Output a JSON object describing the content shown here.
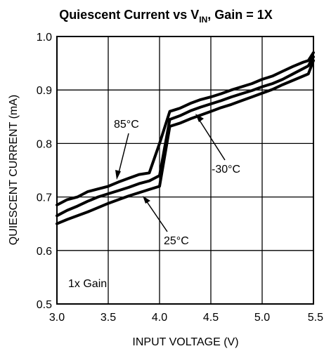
{
  "chart_data": {
    "type": "line",
    "title": {
      "prefix": "Quiescent Current vs V",
      "subscript": "IN",
      "suffix": ", Gain = 1X"
    },
    "xlabel": "INPUT VOLTAGE (V)",
    "ylabel": "QUIESCENT CURRENT (mA)",
    "xlim": [
      3.0,
      5.5
    ],
    "ylim": [
      0.5,
      1.0
    ],
    "xticks": [
      "3.0",
      "3.5",
      "4.0",
      "4.5",
      "5.0",
      "5.5"
    ],
    "yticks": [
      "0.5",
      "0.6",
      "0.7",
      "0.8",
      "0.9",
      "1.0"
    ],
    "grid": true,
    "series": [
      {
        "name": "85°C",
        "x": [
          3.0,
          3.1,
          3.2,
          3.3,
          3.4,
          3.5,
          3.6,
          3.7,
          3.8,
          3.9,
          4.0,
          4.1,
          4.2,
          4.3,
          4.4,
          4.5,
          4.6,
          4.7,
          4.8,
          4.9,
          5.0,
          5.1,
          5.2,
          5.3,
          5.4,
          5.45,
          5.5
        ],
        "y": [
          0.685,
          0.695,
          0.7,
          0.71,
          0.715,
          0.72,
          0.728,
          0.735,
          0.742,
          0.745,
          0.8,
          0.86,
          0.866,
          0.875,
          0.882,
          0.887,
          0.893,
          0.9,
          0.906,
          0.912,
          0.92,
          0.926,
          0.935,
          0.944,
          0.952,
          0.955,
          0.97
        ]
      },
      {
        "name": "-30°C",
        "x": [
          3.0,
          3.1,
          3.2,
          3.3,
          3.4,
          3.5,
          3.6,
          3.7,
          3.8,
          3.9,
          4.0,
          4.1,
          4.2,
          4.3,
          4.4,
          4.5,
          4.6,
          4.7,
          4.8,
          4.9,
          5.0,
          5.1,
          5.2,
          5.3,
          5.4,
          5.45,
          5.5
        ],
        "y": [
          0.665,
          0.675,
          0.683,
          0.692,
          0.7,
          0.706,
          0.712,
          0.718,
          0.725,
          0.73,
          0.74,
          0.845,
          0.852,
          0.861,
          0.868,
          0.874,
          0.88,
          0.887,
          0.893,
          0.899,
          0.906,
          0.912,
          0.92,
          0.93,
          0.94,
          0.945,
          0.962
        ]
      },
      {
        "name": "25°C",
        "x": [
          3.0,
          3.1,
          3.2,
          3.3,
          3.4,
          3.5,
          3.6,
          3.7,
          3.8,
          3.9,
          4.0,
          4.1,
          4.2,
          4.3,
          4.4,
          4.5,
          4.6,
          4.7,
          4.8,
          4.9,
          5.0,
          5.1,
          5.2,
          5.3,
          5.4,
          5.45,
          5.5
        ],
        "y": [
          0.65,
          0.658,
          0.665,
          0.672,
          0.68,
          0.688,
          0.695,
          0.702,
          0.708,
          0.714,
          0.72,
          0.832,
          0.838,
          0.846,
          0.853,
          0.86,
          0.867,
          0.873,
          0.88,
          0.887,
          0.894,
          0.901,
          0.91,
          0.918,
          0.926,
          0.93,
          0.955
        ]
      }
    ],
    "annotations": [
      {
        "text": "85°C"
      },
      {
        "text": "-30°C"
      },
      {
        "text": "25°C"
      },
      {
        "text": "1x Gain"
      }
    ]
  }
}
